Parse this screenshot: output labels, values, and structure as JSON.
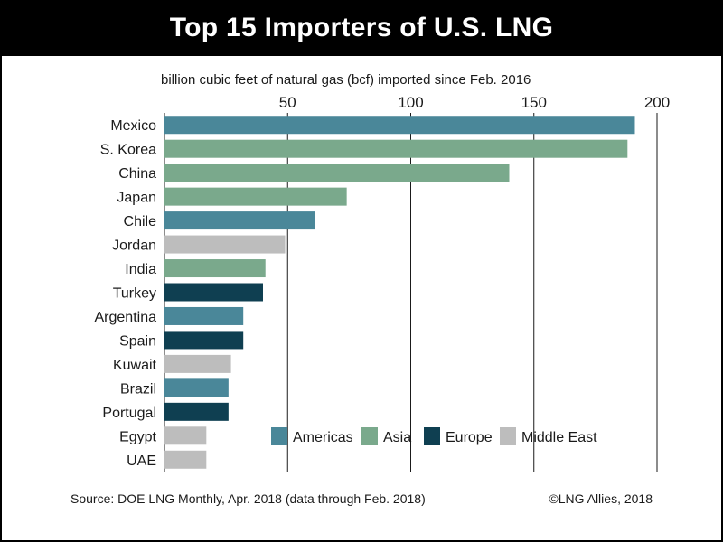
{
  "title": "Top 15 Importers of U.S. LNG",
  "source": "Source: DOE LNG Monthly, Apr. 2018 (data through Feb. 2018)",
  "copyright": "©LNG Allies, 2018",
  "colors": {
    "Americas": "#4a8799",
    "Asia": "#7aa98c",
    "Europe": "#0f3f51",
    "Middle East": "#bdbdbd",
    "gridline": "#1a1a1a"
  },
  "chart_data": {
    "type": "bar",
    "orientation": "horizontal",
    "xlabel": "billion cubic feet of natural gas (bcf) imported since Feb. 2016",
    "xlim": [
      0,
      200
    ],
    "xticks": [
      50,
      100,
      150,
      200
    ],
    "grid": true,
    "legend_position": "bottom-right",
    "legend": [
      "Americas",
      "Asia",
      "Europe",
      "Middle East"
    ],
    "categories": [
      "Mexico",
      "S. Korea",
      "China",
      "Japan",
      "Chile",
      "Jordan",
      "India",
      "Turkey",
      "Argentina",
      "Spain",
      "Kuwait",
      "Brazil",
      "Portugal",
      "Egypt",
      "UAE"
    ],
    "values": [
      191,
      188,
      140,
      74,
      61,
      49,
      41,
      40,
      32,
      32,
      27,
      26,
      26,
      17,
      17
    ],
    "regions": [
      "Americas",
      "Asia",
      "Asia",
      "Asia",
      "Americas",
      "Middle East",
      "Asia",
      "Europe",
      "Americas",
      "Europe",
      "Middle East",
      "Americas",
      "Europe",
      "Middle East",
      "Middle East"
    ]
  }
}
